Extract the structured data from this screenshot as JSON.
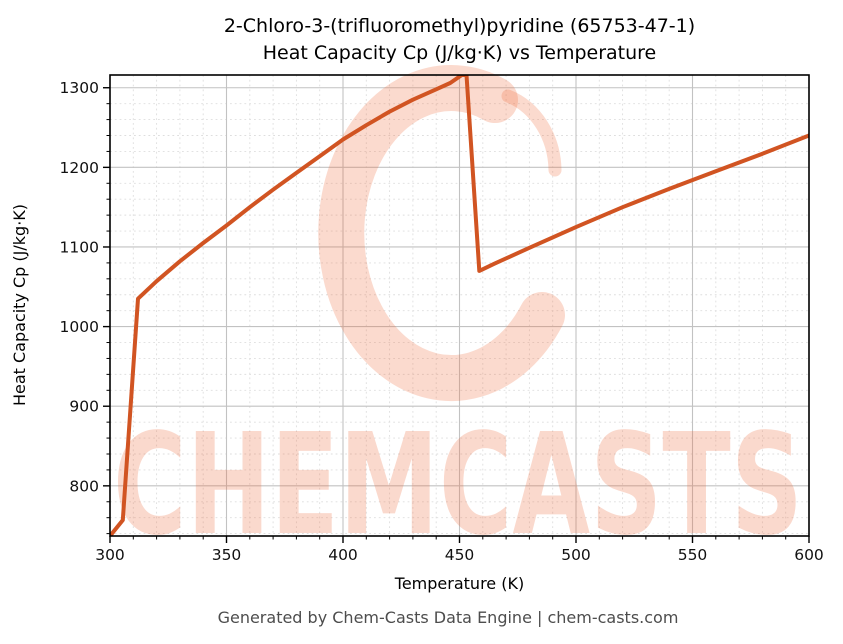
{
  "title": {
    "line1": "2-Chloro-3-(trifluoromethyl)pyridine (65753-47-1)",
    "line2": "Heat Capacity Cp (J/kg·K) vs Temperature"
  },
  "footer": "Generated by Chem-Casts Data Engine | chem-casts.com",
  "watermark": {
    "text": "CHEMCASTS",
    "color": "#ef6a3c",
    "opacity": 0.25
  },
  "chart_data": {
    "type": "line",
    "title": "2-Chloro-3-(trifluoromethyl)pyridine (65753-47-1) Heat Capacity Cp (J/kg·K) vs Temperature",
    "xlabel": "Temperature (K)",
    "ylabel": "Heat Capacity Cp (J/kg·K)",
    "xlim": [
      300,
      600
    ],
    "ylim": [
      737,
      1316
    ],
    "x_major_ticks": [
      300,
      350,
      400,
      450,
      500,
      550,
      600
    ],
    "y_major_ticks": [
      800,
      900,
      1000,
      1100,
      1200,
      1300
    ],
    "x_minor_step": 10,
    "y_minor_step": 20,
    "grid": true,
    "legend": "none",
    "line_color": "#d15422",
    "line_width": 4,
    "series": [
      {
        "name": "Heat Capacity Cp",
        "points": [
          [
            300,
            737
          ],
          [
            305.5,
            757
          ],
          [
            312,
            1035
          ],
          [
            320,
            1057
          ],
          [
            330,
            1082
          ],
          [
            340,
            1105
          ],
          [
            350,
            1127
          ],
          [
            360,
            1150
          ],
          [
            370,
            1172
          ],
          [
            380,
            1193
          ],
          [
            390,
            1214
          ],
          [
            400,
            1235
          ],
          [
            410,
            1253
          ],
          [
            420,
            1270
          ],
          [
            430,
            1285
          ],
          [
            440,
            1298
          ],
          [
            446,
            1306
          ],
          [
            451,
            1316
          ],
          [
            453,
            1316
          ],
          [
            458.5,
            1070
          ],
          [
            465,
            1079
          ],
          [
            480,
            1099
          ],
          [
            500,
            1125
          ],
          [
            520,
            1150
          ],
          [
            540,
            1173
          ],
          [
            560,
            1195
          ],
          [
            580,
            1217
          ],
          [
            600,
            1240
          ]
        ]
      }
    ]
  }
}
